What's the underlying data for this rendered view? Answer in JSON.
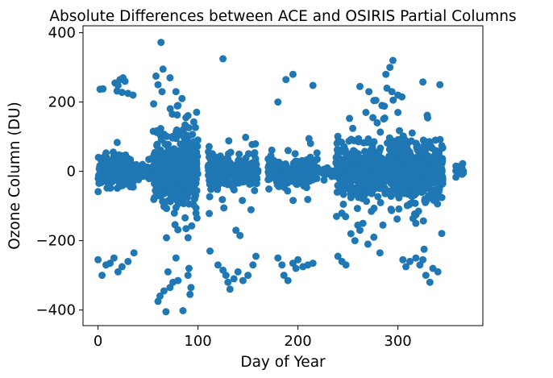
{
  "chart_data": {
    "type": "scatter",
    "title": "Absolute Differences between ACE and OSIRIS Partial Columns",
    "xlabel": "Day of Year",
    "ylabel": "Ozone Column (DU)",
    "xlim": [
      -15,
      385
    ],
    "ylim": [
      -445,
      420
    ],
    "xticks": [
      0,
      100,
      200,
      300
    ],
    "yticks": [
      -400,
      -200,
      0,
      200,
      400
    ],
    "xtick_labels": [
      "0",
      "100",
      "200",
      "300"
    ],
    "ytick_labels": [
      "−400",
      "−200",
      "0",
      "200",
      "400"
    ],
    "grid": false,
    "legend": "none",
    "marker_color": "#1f77b4",
    "outlier_points": [
      [
        2,
        237
      ],
      [
        5,
        238
      ],
      [
        17,
        255
      ],
      [
        20,
        248
      ],
      [
        22,
        265
      ],
      [
        25,
        270
      ],
      [
        27,
        260
      ],
      [
        19,
        232
      ],
      [
        24,
        228
      ],
      [
        30,
        225
      ],
      [
        35,
        220
      ],
      [
        63,
        372
      ],
      [
        65,
        295
      ],
      [
        58,
        275
      ],
      [
        60,
        250
      ],
      [
        64,
        230
      ],
      [
        72,
        270
      ],
      [
        78,
        230
      ],
      [
        84,
        210
      ],
      [
        80,
        190
      ],
      [
        88,
        155
      ],
      [
        125,
        325
      ],
      [
        188,
        265
      ],
      [
        195,
        280
      ],
      [
        215,
        248
      ],
      [
        180,
        200
      ],
      [
        262,
        245
      ],
      [
        271,
        230
      ],
      [
        278,
        205
      ],
      [
        284,
        190
      ],
      [
        288,
        280
      ],
      [
        292,
        300
      ],
      [
        295,
        320
      ],
      [
        289,
        240
      ],
      [
        294,
        230
      ],
      [
        300,
        220
      ],
      [
        304,
        215
      ],
      [
        325,
        258
      ],
      [
        342,
        250
      ],
      [
        268,
        170
      ],
      [
        275,
        155
      ],
      [
        300,
        170
      ],
      [
        0,
        -255
      ],
      [
        4,
        -300
      ],
      [
        8,
        -270
      ],
      [
        12,
        -265
      ],
      [
        16,
        -250
      ],
      [
        20,
        -290
      ],
      [
        24,
        -275
      ],
      [
        30,
        -260
      ],
      [
        36,
        -235
      ],
      [
        60,
        -375
      ],
      [
        62,
        -360
      ],
      [
        66,
        -345
      ],
      [
        68,
        -405
      ],
      [
        72,
        -335
      ],
      [
        75,
        -320
      ],
      [
        80,
        -315
      ],
      [
        85,
        -402
      ],
      [
        92,
        -355
      ],
      [
        93,
        -335
      ],
      [
        90,
        -300
      ],
      [
        91,
        -280
      ],
      [
        70,
        -290
      ],
      [
        78,
        -250
      ],
      [
        112,
        -230
      ],
      [
        120,
        -270
      ],
      [
        125,
        -285
      ],
      [
        128,
        -300
      ],
      [
        130,
        -320
      ],
      [
        132,
        -340
      ],
      [
        136,
        -310
      ],
      [
        140,
        -290
      ],
      [
        145,
        -315
      ],
      [
        150,
        -300
      ],
      [
        155,
        -270
      ],
      [
        158,
        -245
      ],
      [
        138,
        -170
      ],
      [
        142,
        -185
      ],
      [
        180,
        -250
      ],
      [
        184,
        -270
      ],
      [
        186,
        -300
      ],
      [
        190,
        -315
      ],
      [
        195,
        -265
      ],
      [
        198,
        -280
      ],
      [
        200,
        -255
      ],
      [
        205,
        -275
      ],
      [
        210,
        -270
      ],
      [
        215,
        -265
      ],
      [
        240,
        -245
      ],
      [
        244,
        -260
      ],
      [
        248,
        -270
      ],
      [
        253,
        -180
      ],
      [
        257,
        -200
      ],
      [
        262,
        -170
      ],
      [
        265,
        -150
      ],
      [
        270,
        -210
      ],
      [
        276,
        -190
      ],
      [
        282,
        -235
      ],
      [
        285,
        -155
      ],
      [
        305,
        -255
      ],
      [
        308,
        -275
      ],
      [
        312,
        -260
      ],
      [
        318,
        -250
      ],
      [
        322,
        -270
      ],
      [
        325,
        -255
      ],
      [
        328,
        -300
      ],
      [
        332,
        -320
      ],
      [
        335,
        -280
      ],
      [
        340,
        -290
      ]
    ]
  }
}
